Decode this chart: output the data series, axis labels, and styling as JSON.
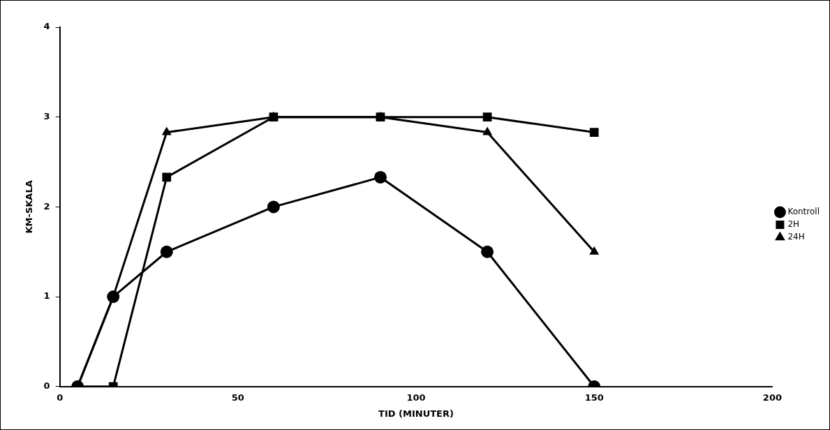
{
  "chart_data": {
    "type": "line",
    "xlabel": "TID (MINUTER)",
    "ylabel": "KM-SKALA",
    "x": [
      5,
      15,
      30,
      60,
      90,
      120,
      150
    ],
    "series": [
      {
        "name": "Kontroll",
        "color": "#000000",
        "marker": "circle",
        "values": [
          0,
          1,
          1.5,
          2,
          2.33,
          1.5,
          0
        ]
      },
      {
        "name": "2H",
        "color": "#000000",
        "marker": "square",
        "values": [
          0,
          0,
          2.33,
          3,
          3,
          3,
          2.83
        ]
      },
      {
        "name": "24H",
        "color": "#000000",
        "marker": "triangle",
        "values": [
          0,
          1,
          2.83,
          3,
          3,
          2.83,
          1.5
        ]
      }
    ],
    "xlim": [
      0,
      200
    ],
    "xticks": [
      0,
      50,
      100,
      150,
      200
    ],
    "ylim": [
      0,
      4
    ],
    "yticks": [
      0,
      1,
      2,
      3,
      4
    ],
    "grid": false,
    "legend": "right",
    "line_style": "solid"
  }
}
